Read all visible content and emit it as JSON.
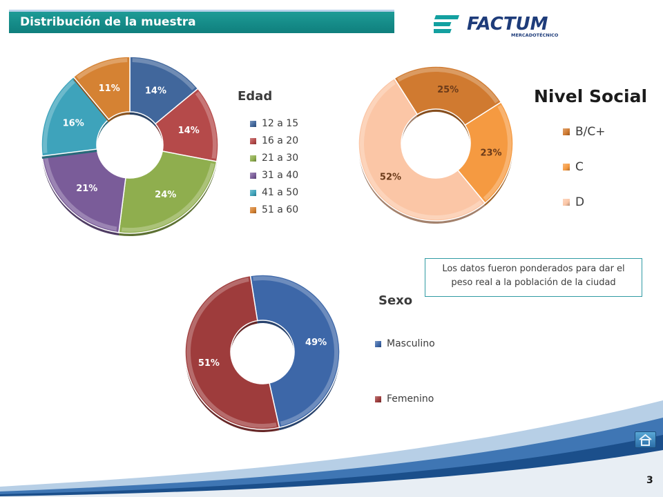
{
  "slide": {
    "title": "Distribución de la muestra",
    "page_number": "3",
    "note": "Los datos fueron ponderados para dar el peso real a la población de la ciudad",
    "logo": {
      "name": "FACTUM",
      "tagline": "MERCADOTÉCNICO",
      "color": "#1e3c7a",
      "accent": "#13a0a0"
    }
  },
  "chart_data": [
    {
      "type": "pie",
      "title": "Edad",
      "categories": [
        "12 a 15",
        "16 a 20",
        "21 a 30",
        "31 a 40",
        "41 a 50",
        "51 a 60"
      ],
      "values": [
        14,
        14,
        24,
        21,
        16,
        11
      ],
      "labels": [
        "14%",
        "14%",
        "24%",
        "21%",
        "16%",
        "11%"
      ],
      "colors": [
        "#41679c",
        "#b54a4a",
        "#8fae4e",
        "#7a5c99",
        "#3ea3bb",
        "#d58233"
      ],
      "legend": "right"
    },
    {
      "type": "pie",
      "title": "Nivel Social",
      "categories": [
        "B/C+",
        "C",
        "D"
      ],
      "values": [
        25,
        23,
        52
      ],
      "labels": [
        "25%",
        "23%",
        "52%"
      ],
      "colors": [
        "#d07a30",
        "#f59a41",
        "#fbc6a6"
      ],
      "legend": "right"
    },
    {
      "type": "pie",
      "title": "Sexo",
      "categories": [
        "Masculino",
        "Femenino"
      ],
      "values": [
        49,
        51
      ],
      "labels": [
        "49%",
        "51%"
      ],
      "colors": [
        "#3d67a8",
        "#9e3c3c"
      ],
      "legend": "right"
    }
  ]
}
